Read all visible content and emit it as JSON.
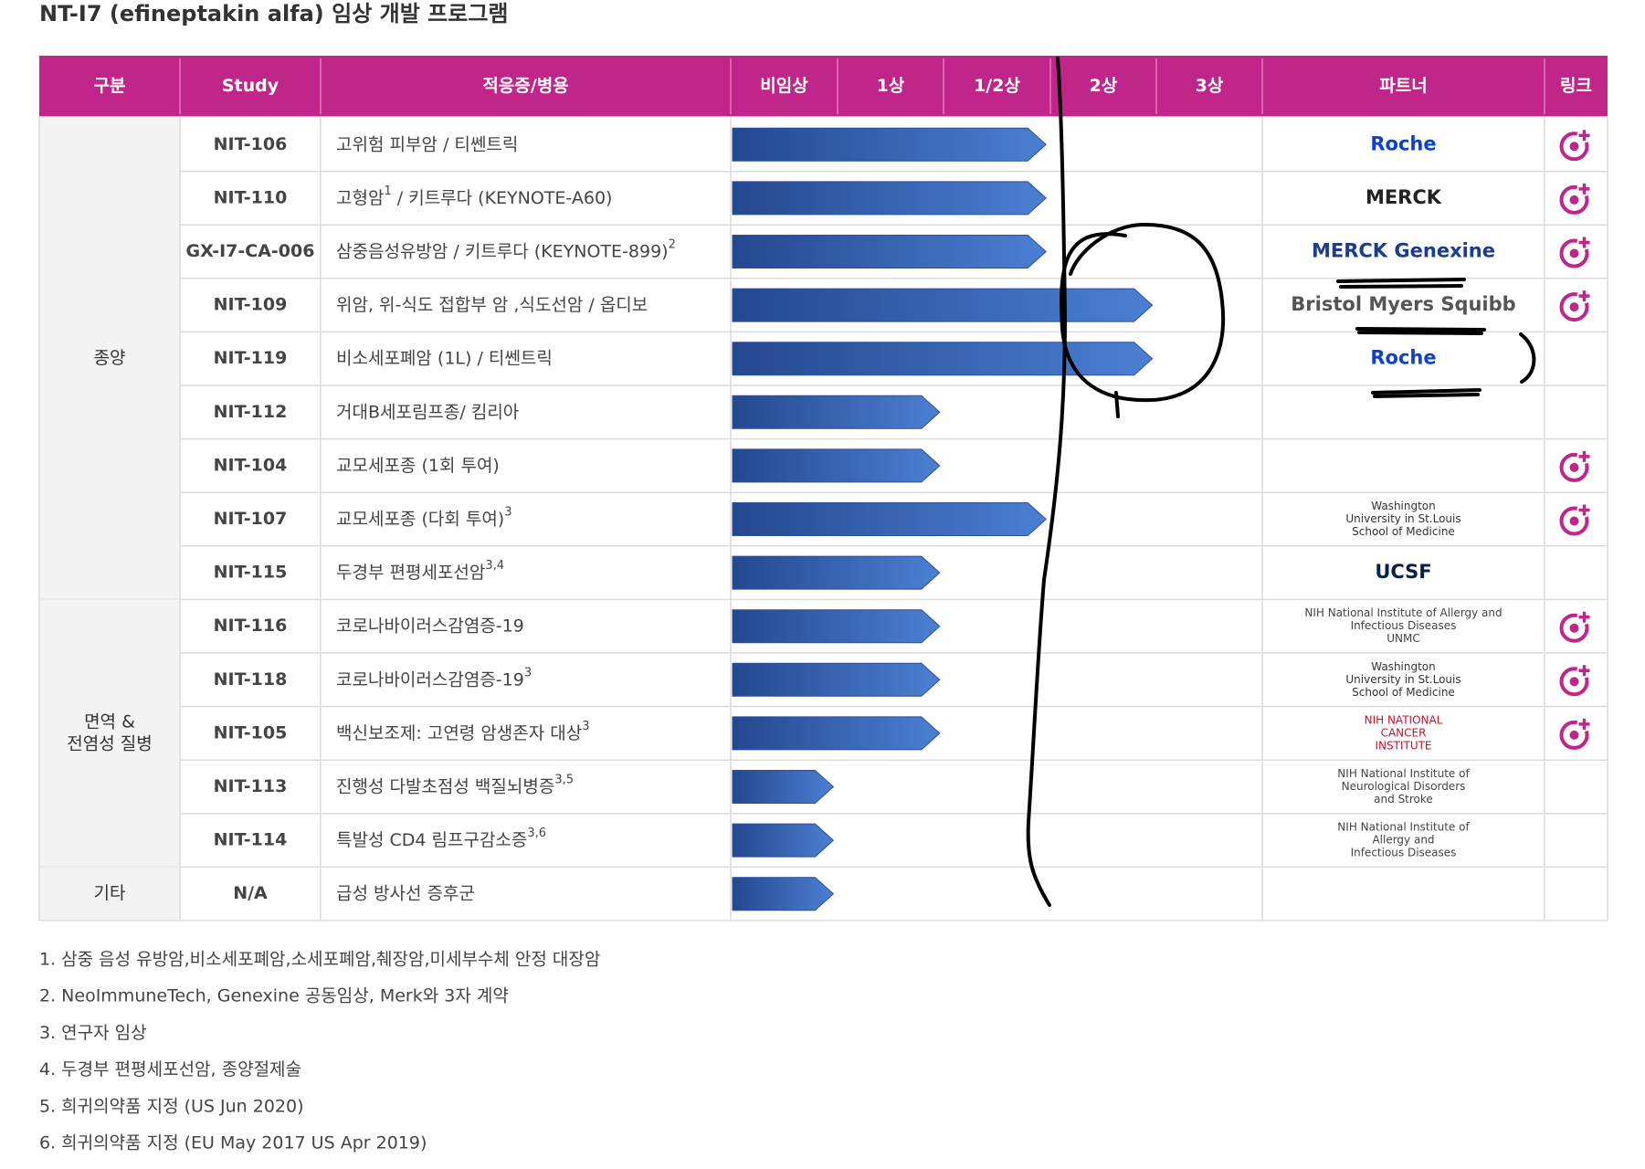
{
  "title": "NT-I7 (efineptakin alfa) 임상 개발 프로그램",
  "header": [
    "구분",
    "Study",
    "적응증/병용",
    "비임상",
    "1상",
    "1/2상",
    "2상",
    "3상",
    "파트너",
    "링크"
  ],
  "groups": [
    {
      "label": [
        "종양"
      ],
      "rows": [
        {
          "study": "NIT-106",
          "indication": [
            {
              "text": "고위험 피부암 / 티쎈트릭"
            }
          ],
          "progress": 3,
          "partner": {
            "lines": [
              "Roche"
            ],
            "color": "#0b41cd"
          },
          "link": true
        },
        {
          "study": "NIT-110",
          "indication": [
            {
              "text": "고형암"
            },
            {
              "sup": "1"
            },
            {
              "text": " / 키트루다 (KEYNOTE-A60)"
            }
          ],
          "progress": 3,
          "partner": {
            "lines": [
              "MERCK"
            ],
            "color": "#222222"
          },
          "link": true
        },
        {
          "study": "GX-I7-CA-006",
          "indication": [
            {
              "text": "삼중음성유방암 / 키트루다 (KEYNOTE-899)"
            },
            {
              "sup": "2"
            }
          ],
          "progress": 3,
          "partner": {
            "lines": [
              "MERCK Genexine"
            ],
            "color": "#1c3c8c"
          },
          "link": true
        },
        {
          "study": "NIT-109",
          "indication": [
            {
              "text": "위암, 위-식도 접합부 암 ,식도선암 / 옵디보"
            }
          ],
          "progress": 4,
          "partner": {
            "lines": [
              "Bristol Myers Squibb"
            ],
            "color": "#555555"
          },
          "link": true
        },
        {
          "study": "NIT-119",
          "indication": [
            {
              "text": "비소세포폐암 (1L) / 티쎈트릭"
            }
          ],
          "progress": 4,
          "partner": {
            "lines": [
              "Roche"
            ],
            "color": "#0b41cd"
          },
          "link": false
        },
        {
          "study": "NIT-112",
          "indication": [
            {
              "text": "거대B세포림프종/ 킴리아"
            }
          ],
          "progress": 2,
          "partner": null,
          "link": false
        },
        {
          "study": "NIT-104",
          "indication": [
            {
              "text": "교모세포종 (1회 투여)"
            }
          ],
          "progress": 2,
          "partner": null,
          "link": true
        },
        {
          "study": "NIT-107",
          "indication": [
            {
              "text": "교모세포종 (다회 투여)"
            },
            {
              "sup": "3"
            }
          ],
          "progress": 3,
          "partner": {
            "lines": [
              "Washington",
              "University in St.Louis",
              "School of Medicine"
            ],
            "color": "#333333"
          },
          "link": true
        },
        {
          "study": "NIT-115",
          "indication": [
            {
              "text": "두경부 편평세포선암"
            },
            {
              "sup": "3,4"
            }
          ],
          "progress": 2,
          "partner": {
            "lines": [
              "UCSF"
            ],
            "color": "#052049"
          },
          "link": false
        }
      ]
    },
    {
      "label": [
        "면역 &",
        "전염성 질병"
      ],
      "rows": [
        {
          "study": "NIT-116",
          "indication": [
            {
              "text": "코로나바이러스감염증-19"
            }
          ],
          "progress": 2,
          "partner": {
            "lines": [
              "NIH National Institute of Allergy and",
              "Infectious Diseases",
              "UNMC"
            ],
            "color": "#444444"
          },
          "link": true
        },
        {
          "study": "NIT-118",
          "indication": [
            {
              "text": "코로나바이러스감염증-19"
            },
            {
              "sup": "3"
            }
          ],
          "progress": 2,
          "partner": {
            "lines": [
              "Washington",
              "University in St.Louis",
              "School of Medicine"
            ],
            "color": "#333333"
          },
          "link": true
        },
        {
          "study": "NIT-105",
          "indication": [
            {
              "text": "백신보조제: 고연령 암생존자 대상"
            },
            {
              "sup": "3"
            }
          ],
          "progress": 2,
          "partner": {
            "lines": [
              "NIH NATIONAL",
              "CANCER",
              "INSTITUTE"
            ],
            "color": "#c8102e"
          },
          "link": true
        },
        {
          "study": "NIT-113",
          "indication": [
            {
              "text": "진행성 다발초점성 백질뇌병증"
            },
            {
              "sup": "3,5"
            }
          ],
          "progress": 1,
          "partner": {
            "lines": [
              "NIH National Institute of",
              "Neurological Disorders",
              "and Stroke"
            ],
            "color": "#444444"
          },
          "link": false
        },
        {
          "study": "NIT-114",
          "indication": [
            {
              "text": "특발성 CD4 림프구감소증"
            },
            {
              "sup": "3,6"
            }
          ],
          "progress": 1,
          "partner": {
            "lines": [
              "NIH National Institute of",
              "Allergy and",
              "Infectious Diseases"
            ],
            "color": "#444444"
          },
          "link": false
        }
      ]
    },
    {
      "label": [
        "기타"
      ],
      "rows": [
        {
          "study": "N/A",
          "indication": [
            {
              "text": "급성 방사선 증후군"
            }
          ],
          "progress": 1,
          "partner": null,
          "link": false
        }
      ]
    }
  ],
  "footnotes": [
    "1. 삼중 음성 유방암,비소세포폐암,소세포폐암,췌장암,미세부수체 안정 대장암",
    "2. NeoImmuneTech, Genexine 공동임상, Merk와 3자 계약",
    "3. 연구자 임상",
    "4. 두경부 편평세포선암, 종양절제술",
    "5. 희귀의약품 지정 (US Jun 2020)",
    "6. 희귀의약품 지정 (EU May 2017 US Apr 2019)"
  ]
}
